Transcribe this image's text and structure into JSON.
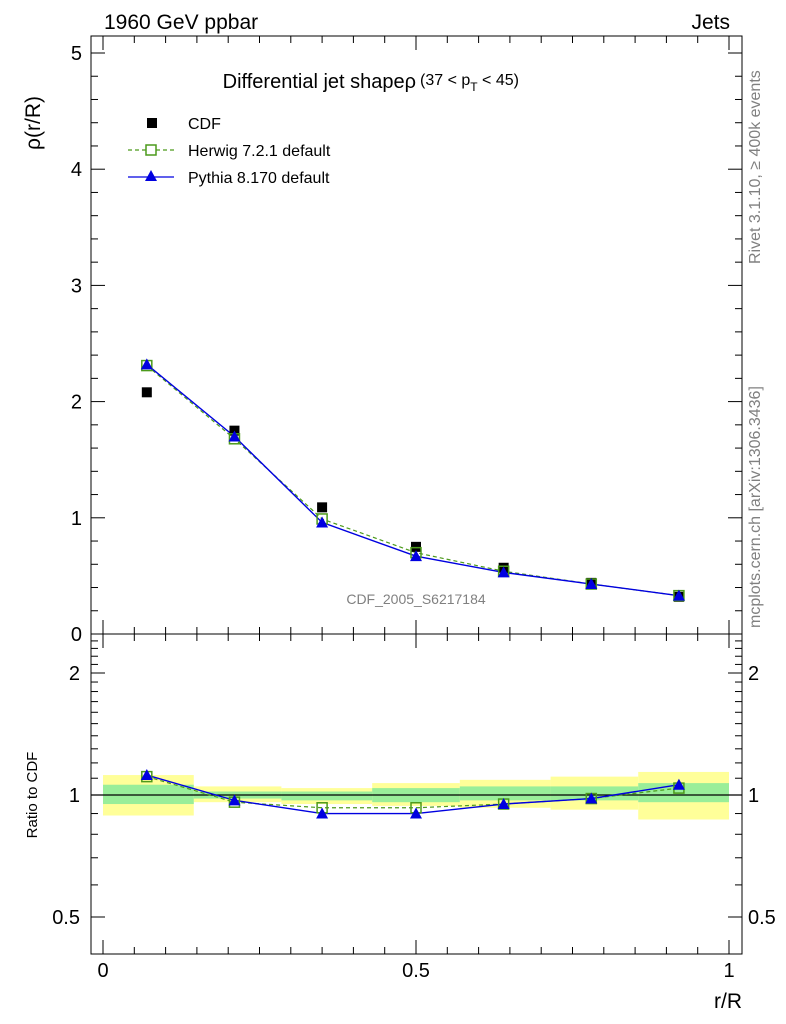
{
  "header": {
    "left": "1960 GeV ppbar",
    "right": "Jets"
  },
  "side_labels": {
    "rivet": "Rivet 3.1.10, ≥ 400k events",
    "mcplots": "mcplots.cern.ch [arXiv:1306.3436]"
  },
  "watermark": "CDF_2005_S6217184",
  "chart_data": [
    {
      "type": "scatter",
      "title_main": "Differential jet shapeρ",
      "title_sub_prefix": "(37 < p",
      "title_sub_subscript": "T",
      "title_sub_suffix": " < 45)",
      "xlabel": "r/R",
      "ylabel": "ρ(r/R)",
      "xlim": [
        0,
        1
      ],
      "ylim": [
        0,
        5.2
      ],
      "yticks": [
        "0",
        "1",
        "2",
        "3",
        "4",
        "5"
      ],
      "x": [
        0.07,
        0.21,
        0.35,
        0.5,
        0.64,
        0.78,
        0.92
      ],
      "series": [
        {
          "name": "CDF",
          "marker": "square-filled",
          "color": "#000000",
          "values": [
            2.08,
            1.75,
            1.09,
            0.75,
            0.57,
            0.44,
            0.32
          ]
        },
        {
          "name": "Herwig 7.2.1 default",
          "marker": "square-open",
          "line": "dashed",
          "color": "#4c9a1b",
          "values": [
            2.31,
            1.68,
            0.99,
            0.7,
            0.54,
            0.43,
            0.33
          ]
        },
        {
          "name": "Pythia 8.170 default",
          "marker": "triangle-filled",
          "line": "solid",
          "color": "#0000e0",
          "values": [
            2.32,
            1.7,
            0.96,
            0.67,
            0.53,
            0.43,
            0.33
          ]
        }
      ],
      "legend_position": "top-left"
    },
    {
      "type": "line",
      "ylabel": "Ratio to CDF",
      "xlabel": "r/R",
      "xlim": [
        0,
        1
      ],
      "ylim": [
        0.33,
        2.5
      ],
      "yticks": [
        "0.5",
        "1",
        "2"
      ],
      "xticks": [
        "0",
        "0.5",
        "1"
      ],
      "bin_edges": [
        0,
        0.145,
        0.285,
        0.43,
        0.57,
        0.715,
        0.855,
        1.0
      ],
      "band_inner": [
        [
          0.95,
          1.06
        ],
        [
          0.98,
          1.02
        ],
        [
          0.97,
          1.02
        ],
        [
          0.96,
          1.04
        ],
        [
          0.97,
          1.05
        ],
        [
          0.97,
          1.05
        ],
        [
          0.96,
          1.07
        ]
      ],
      "band_outer": [
        [
          0.89,
          1.12
        ],
        [
          0.96,
          1.05
        ],
        [
          0.95,
          1.04
        ],
        [
          0.94,
          1.07
        ],
        [
          0.93,
          1.09
        ],
        [
          0.92,
          1.11
        ],
        [
          0.87,
          1.14
        ]
      ],
      "series": [
        {
          "name": "Herwig 7.2.1 default",
          "color": "#4c9a1b",
          "values": [
            1.11,
            0.96,
            0.93,
            0.93,
            0.95,
            0.98,
            1.04
          ]
        },
        {
          "name": "Pythia 8.170 default",
          "color": "#0000e0",
          "values": [
            1.12,
            0.97,
            0.9,
            0.9,
            0.95,
            0.98,
            1.06
          ]
        }
      ]
    }
  ]
}
